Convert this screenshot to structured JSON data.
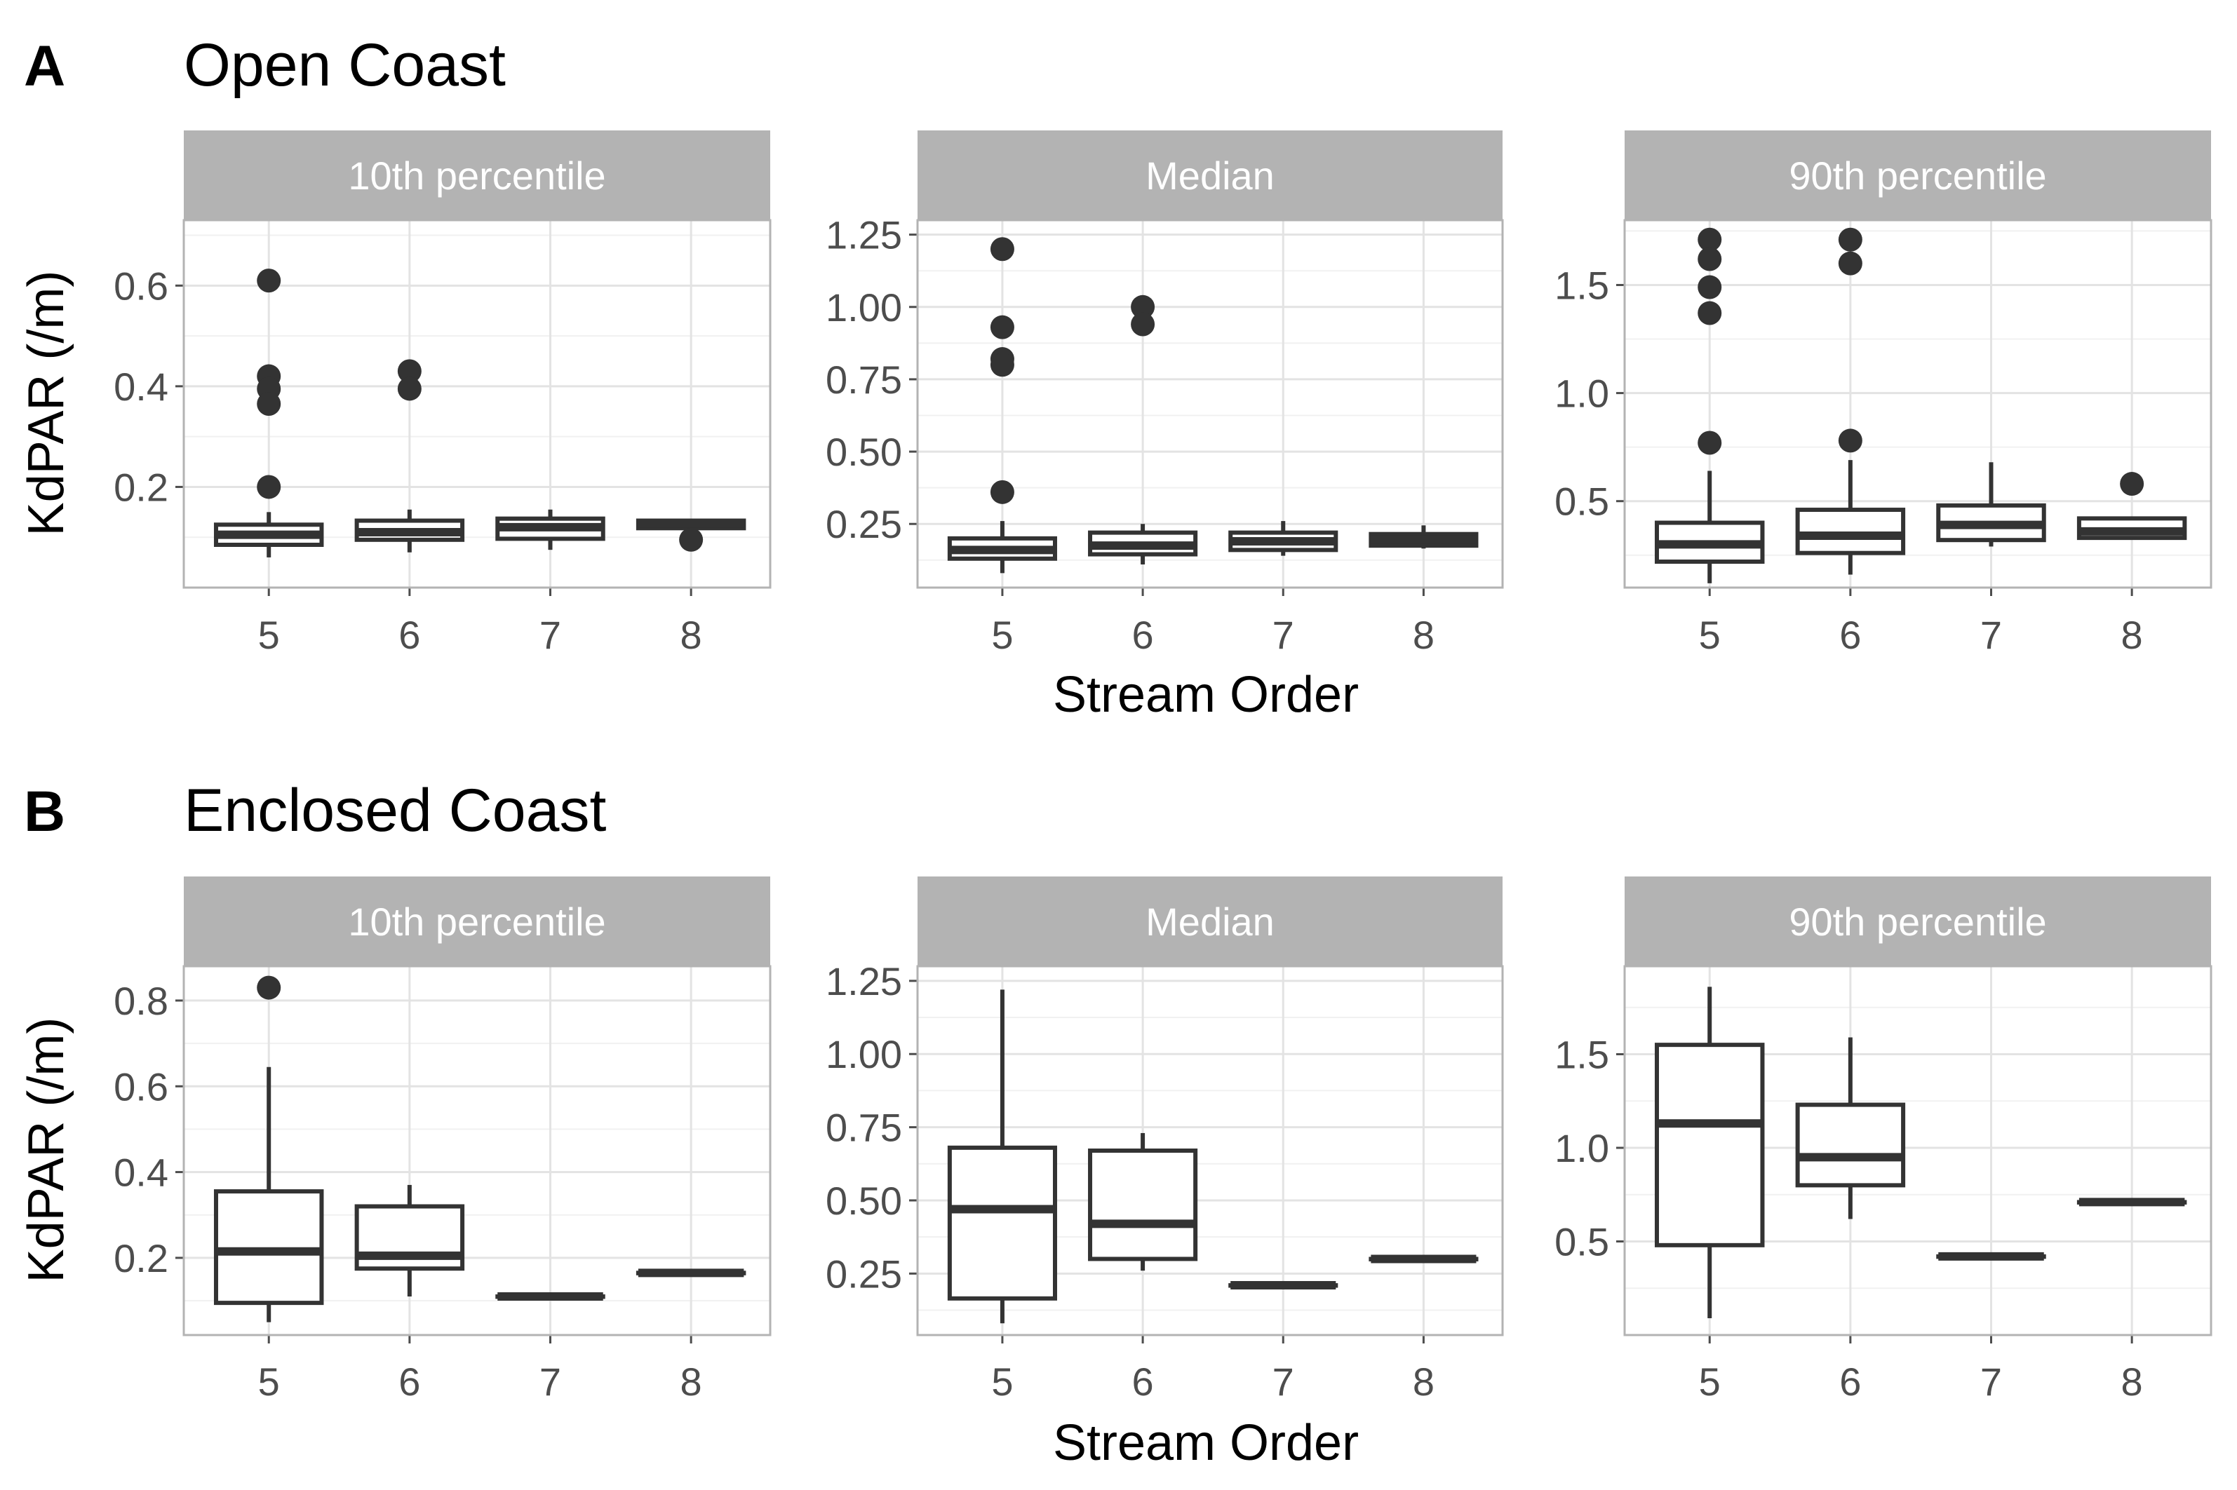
{
  "chart_data": {
    "type": "boxplot",
    "facet_labels": [
      "10th percentile",
      "Median",
      "90th percentile"
    ],
    "x_title": "Stream Order",
    "y_title": "KdPAR (/m)",
    "categories": [
      "5",
      "6",
      "7",
      "8"
    ],
    "sections": [
      {
        "letter": "A",
        "title": "Open Coast",
        "panels": [
          {
            "facet": "10th percentile",
            "ylim": [
              0.0,
              0.73
            ],
            "yticks": [
              0.2,
              0.4,
              0.6
            ],
            "ytick_labels": [
              "0.2",
              "0.4",
              "0.6"
            ],
            "boxes": [
              {
                "x": "5",
                "min": 0.06,
                "q1": 0.085,
                "median": 0.105,
                "q3": 0.125,
                "max": 0.15,
                "outliers": [
                  0.61,
                  0.42,
                  0.395,
                  0.365,
                  0.2
                ]
              },
              {
                "x": "6",
                "min": 0.07,
                "q1": 0.095,
                "median": 0.11,
                "q3": 0.133,
                "max": 0.155,
                "outliers": [
                  0.43,
                  0.395
                ]
              },
              {
                "x": "7",
                "min": 0.075,
                "q1": 0.097,
                "median": 0.12,
                "q3": 0.137,
                "max": 0.155,
                "outliers": []
              },
              {
                "x": "8",
                "min": 0.115,
                "q1": 0.118,
                "median": 0.127,
                "q3": 0.133,
                "max": 0.135,
                "outliers": [
                  0.095
                ]
              }
            ]
          },
          {
            "facet": "Median",
            "ylim": [
              0.03,
              1.3
            ],
            "yticks": [
              0.25,
              0.5,
              0.75,
              1.0,
              1.25
            ],
            "ytick_labels": [
              "0.25",
              "0.50",
              "0.75",
              "1.00",
              "1.25"
            ],
            "boxes": [
              {
                "x": "5",
                "min": 0.08,
                "q1": 0.13,
                "median": 0.16,
                "q3": 0.2,
                "max": 0.26,
                "outliers": [
                  1.2,
                  0.93,
                  0.82,
                  0.8,
                  0.36
                ]
              },
              {
                "x": "6",
                "min": 0.11,
                "q1": 0.145,
                "median": 0.175,
                "q3": 0.22,
                "max": 0.25,
                "outliers": [
                  1.0,
                  0.94
                ]
              },
              {
                "x": "7",
                "min": 0.14,
                "q1": 0.16,
                "median": 0.19,
                "q3": 0.22,
                "max": 0.26,
                "outliers": []
              },
              {
                "x": "8",
                "min": 0.165,
                "q1": 0.175,
                "median": 0.195,
                "q3": 0.215,
                "max": 0.245,
                "outliers": []
              }
            ]
          },
          {
            "facet": "90th percentile",
            "ylim": [
              0.1,
              1.8
            ],
            "yticks": [
              0.5,
              1.0,
              1.5
            ],
            "ytick_labels": [
              "0.5",
              "1.0",
              "1.5"
            ],
            "boxes": [
              {
                "x": "5",
                "min": 0.12,
                "q1": 0.22,
                "median": 0.3,
                "q3": 0.4,
                "max": 0.64,
                "outliers": [
                  1.71,
                  1.62,
                  1.49,
                  1.37,
                  0.77
                ]
              },
              {
                "x": "6",
                "min": 0.16,
                "q1": 0.26,
                "median": 0.34,
                "q3": 0.46,
                "max": 0.69,
                "outliers": [
                  1.71,
                  1.6,
                  0.78
                ]
              },
              {
                "x": "7",
                "min": 0.29,
                "q1": 0.32,
                "median": 0.39,
                "q3": 0.48,
                "max": 0.68,
                "outliers": []
              },
              {
                "x": "8",
                "min": 0.33,
                "q1": 0.33,
                "median": 0.36,
                "q3": 0.42,
                "max": 0.42,
                "outliers": [
                  0.58
                ]
              }
            ]
          }
        ]
      },
      {
        "letter": "B",
        "title": "Enclosed Coast",
        "panels": [
          {
            "facet": "10th percentile",
            "ylim": [
              0.02,
              0.88
            ],
            "yticks": [
              0.2,
              0.4,
              0.6,
              0.8
            ],
            "ytick_labels": [
              "0.2",
              "0.4",
              "0.6",
              "0.8"
            ],
            "boxes": [
              {
                "x": "5",
                "min": 0.05,
                "q1": 0.095,
                "median": 0.215,
                "q3": 0.355,
                "max": 0.645,
                "outliers": [
                  0.83
                ]
              },
              {
                "x": "6",
                "min": 0.11,
                "q1": 0.175,
                "median": 0.205,
                "q3": 0.32,
                "max": 0.37,
                "outliers": []
              },
              {
                "x": "7",
                "min": 0.11,
                "q1": 0.11,
                "median": 0.11,
                "q3": 0.11,
                "max": 0.11,
                "outliers": []
              },
              {
                "x": "8",
                "min": 0.165,
                "q1": 0.165,
                "median": 0.165,
                "q3": 0.165,
                "max": 0.165,
                "outliers": []
              }
            ]
          },
          {
            "facet": "Median",
            "ylim": [
              0.04,
              1.3
            ],
            "yticks": [
              0.25,
              0.5,
              0.75,
              1.0,
              1.25
            ],
            "ytick_labels": [
              "0.25",
              "0.50",
              "0.75",
              "1.00",
              "1.25"
            ],
            "boxes": [
              {
                "x": "5",
                "min": 0.08,
                "q1": 0.165,
                "median": 0.47,
                "q3": 0.68,
                "max": 1.22,
                "outliers": []
              },
              {
                "x": "6",
                "min": 0.26,
                "q1": 0.3,
                "median": 0.42,
                "q3": 0.67,
                "max": 0.73,
                "outliers": []
              },
              {
                "x": "7",
                "min": 0.21,
                "q1": 0.21,
                "median": 0.21,
                "q3": 0.21,
                "max": 0.21,
                "outliers": []
              },
              {
                "x": "8",
                "min": 0.3,
                "q1": 0.3,
                "median": 0.3,
                "q3": 0.3,
                "max": 0.3,
                "outliers": []
              }
            ]
          },
          {
            "facet": "90th percentile",
            "ylim": [
              0.0,
              1.97
            ],
            "yticks": [
              0.5,
              1.0,
              1.5
            ],
            "ytick_labels": [
              "0.5",
              "1.0",
              "1.5"
            ],
            "boxes": [
              {
                "x": "5",
                "min": 0.09,
                "q1": 0.48,
                "median": 1.13,
                "q3": 1.55,
                "max": 1.86,
                "outliers": []
              },
              {
                "x": "6",
                "min": 0.62,
                "q1": 0.8,
                "median": 0.95,
                "q3": 1.23,
                "max": 1.59,
                "outliers": []
              },
              {
                "x": "7",
                "min": 0.42,
                "q1": 0.42,
                "median": 0.42,
                "q3": 0.42,
                "max": 0.42,
                "outliers": []
              },
              {
                "x": "8",
                "min": 0.71,
                "q1": 0.71,
                "median": 0.71,
                "q3": 0.71,
                "max": 0.71,
                "outliers": []
              }
            ]
          }
        ]
      }
    ]
  }
}
